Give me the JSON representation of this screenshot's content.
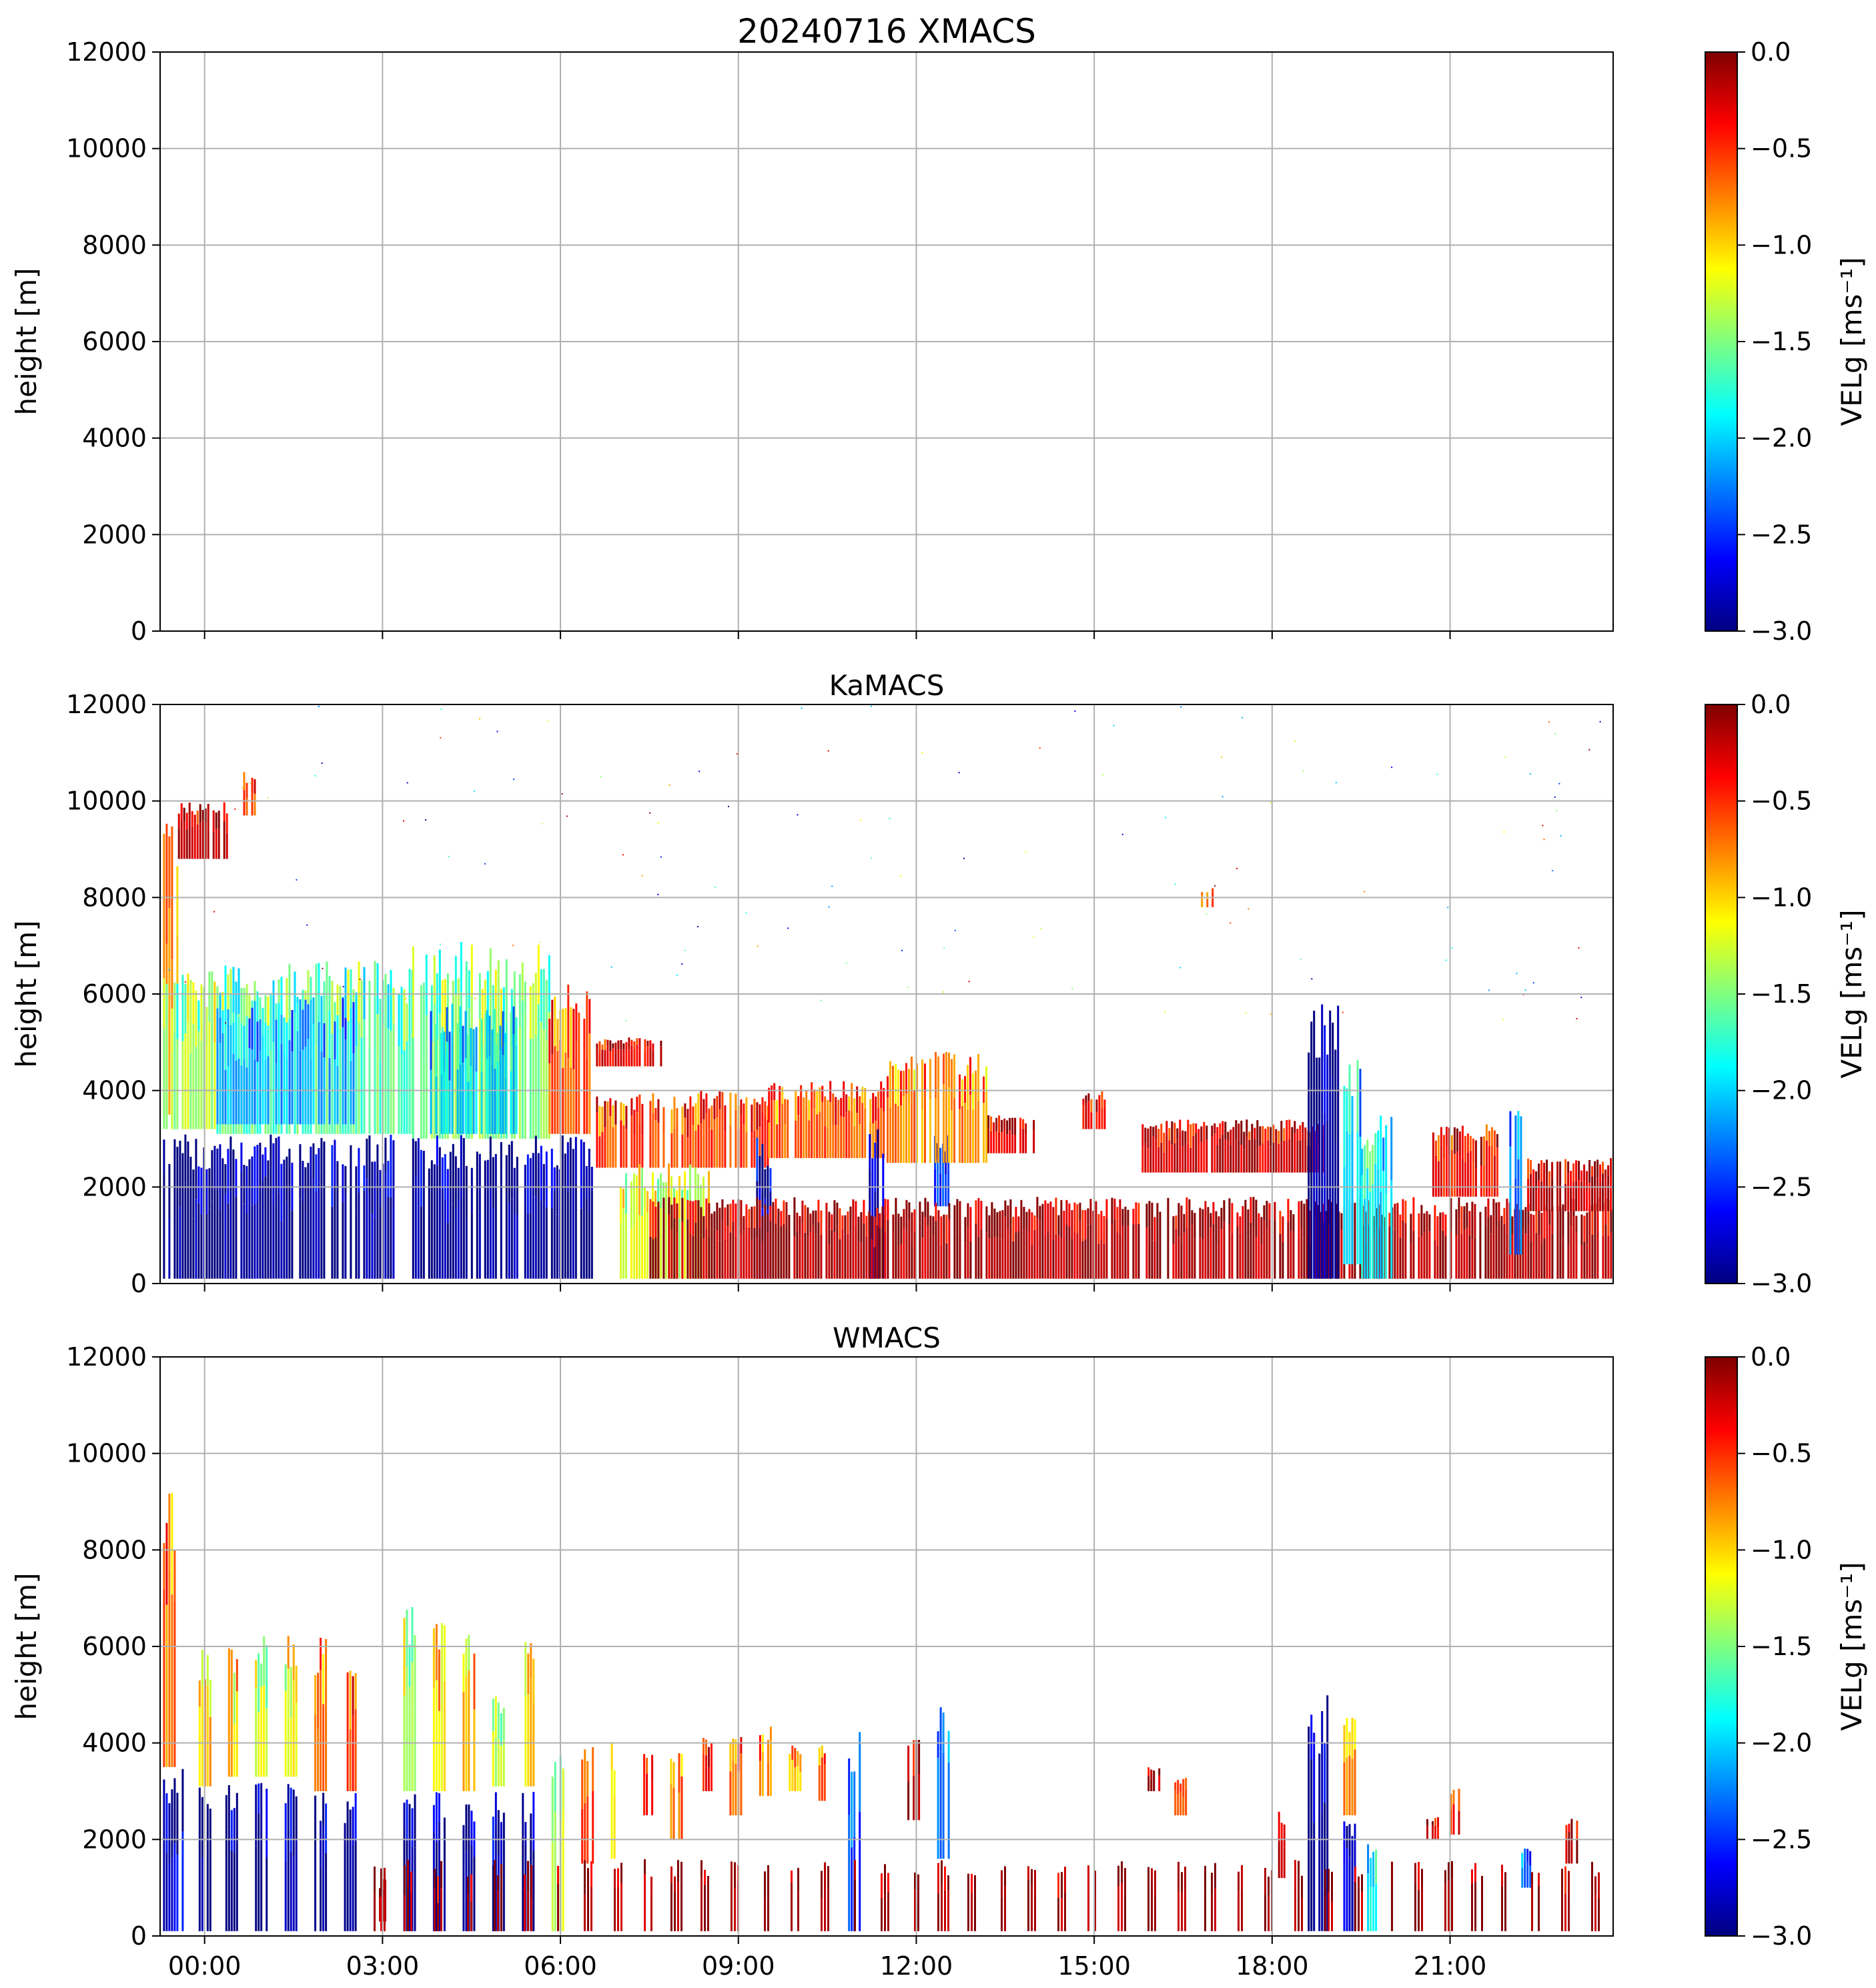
{
  "figure": {
    "colormap": "jet",
    "colors": {
      "grid": "#b0b0b0",
      "axis": "#000000",
      "background": "#ffffff",
      "jet_stops": [
        "#00007f",
        "#0000ff",
        "#007fff",
        "#00ffff",
        "#7fff7f",
        "#ffff00",
        "#ff7f00",
        "#ff0000",
        "#7f0000"
      ]
    }
  },
  "chart_data": [
    {
      "type": "heatmap",
      "id": "xmacs",
      "title": "20240716 XMACS",
      "xlabel": "",
      "ylabel": "height [m]",
      "xlim": [
        -0.75,
        23.75
      ],
      "ylim": [
        0,
        12000
      ],
      "xticks": [
        0,
        3,
        6,
        9,
        12,
        15,
        18,
        21
      ],
      "xticklabels": [
        "",
        "",
        "",
        "",
        "",
        "",
        "",
        ""
      ],
      "yticks": [
        0,
        2000,
        4000,
        6000,
        8000,
        10000,
        12000
      ],
      "yticklabels": [
        "0",
        "2000",
        "4000",
        "6000",
        "8000",
        "10000",
        "12000"
      ],
      "grid": true,
      "colorbar": {
        "label": "VELg [ms⁻¹]",
        "vmin": -3.0,
        "vmax": 0.0,
        "ticks": [
          -3.0,
          -2.5,
          -2.0,
          -1.5,
          -1.0,
          -0.5,
          0.0
        ],
        "ticklabels": [
          "−3.0",
          "−2.5",
          "−2.0",
          "−1.5",
          "−1.0",
          "−0.5",
          "0.0"
        ]
      },
      "regions": []
    },
    {
      "type": "heatmap",
      "id": "kamacs",
      "title": "KaMACS",
      "xlabel": "",
      "ylabel": "height [m]",
      "xlim": [
        -0.75,
        23.75
      ],
      "ylim": [
        0,
        12000
      ],
      "xticks": [
        0,
        3,
        6,
        9,
        12,
        15,
        18,
        21
      ],
      "xticklabels": [
        "",
        "",
        "",
        "",
        "",
        "",
        "",
        ""
      ],
      "yticks": [
        0,
        2000,
        4000,
        6000,
        8000,
        10000,
        12000
      ],
      "yticklabels": [
        "0",
        "2000",
        "4000",
        "6000",
        "8000",
        "10000",
        "12000"
      ],
      "grid": true,
      "colorbar": {
        "label": "VELg [ms⁻¹]",
        "vmin": -3.0,
        "vmax": 0.0,
        "ticks": [
          -3.0,
          -2.5,
          -2.0,
          -1.5,
          -1.0,
          -0.5,
          0.0
        ],
        "ticklabels": [
          "−3.0",
          "−2.5",
          "−2.0",
          "−1.5",
          "−1.0",
          "−0.5",
          "0.0"
        ]
      },
      "regions": [
        {
          "x0": -0.7,
          "x1": -0.45,
          "y0": 3500,
          "y1": 9800,
          "v": -0.9
        },
        {
          "x0": -0.45,
          "x1": 0.4,
          "y0": 8800,
          "y1": 10000,
          "v": -0.2
        },
        {
          "x0": 0.65,
          "x1": 0.85,
          "y0": 9700,
          "y1": 10600,
          "v": -0.6
        },
        {
          "x0": -0.7,
          "x1": 0.2,
          "y0": 3200,
          "y1": 6500,
          "v": -1.4
        },
        {
          "x0": 0.2,
          "x1": 3.5,
          "y0": 3100,
          "y1": 6700,
          "v": -1.6
        },
        {
          "x0": 0.2,
          "x1": 2.5,
          "y0": 3300,
          "y1": 6000,
          "v": -2.1
        },
        {
          "x0": 3.5,
          "x1": 5.8,
          "y0": 3000,
          "y1": 7100,
          "v": -1.5
        },
        {
          "x0": 3.8,
          "x1": 5.3,
          "y0": 3100,
          "y1": 5800,
          "v": -2.0
        },
        {
          "x0": 5.8,
          "x1": 6.6,
          "y0": 3100,
          "y1": 6200,
          "v": -0.6
        },
        {
          "x0": -0.7,
          "x1": 3.2,
          "y0": 100,
          "y1": 3100,
          "v": -2.95
        },
        {
          "x0": 3.5,
          "x1": 6.6,
          "y0": 100,
          "y1": 3100,
          "v": -2.95
        },
        {
          "x0": 6.6,
          "x1": 7.7,
          "y0": 4500,
          "y1": 5100,
          "v": -0.3
        },
        {
          "x0": 6.6,
          "x1": 9.5,
          "y0": 2400,
          "y1": 4000,
          "v": -0.55
        },
        {
          "x0": 9.5,
          "x1": 11.5,
          "y0": 2600,
          "y1": 4200,
          "v": -0.65
        },
        {
          "x0": 7.0,
          "x1": 8.5,
          "y0": 100,
          "y1": 2500,
          "v": -1.25
        },
        {
          "x0": 9.3,
          "x1": 9.55,
          "y0": 100,
          "y1": 3100,
          "v": -2.8
        },
        {
          "x0": 11.2,
          "x1": 11.45,
          "y0": 100,
          "y1": 3200,
          "v": -2.9
        },
        {
          "x0": 12.3,
          "x1": 12.55,
          "y0": 1600,
          "y1": 3100,
          "v": -2.5
        },
        {
          "x0": 11.5,
          "x1": 13.2,
          "y0": 2500,
          "y1": 4800,
          "v": -0.8
        },
        {
          "x0": 13.2,
          "x1": 14.0,
          "y0": 2700,
          "y1": 3500,
          "v": -0.3
        },
        {
          "x0": 7.5,
          "x1": 23.7,
          "y0": 100,
          "y1": 1800,
          "v": -0.12
        },
        {
          "x0": 14.8,
          "x1": 15.2,
          "y0": 3200,
          "y1": 4000,
          "v": -0.3
        },
        {
          "x0": 15.8,
          "x1": 18.9,
          "y0": 2300,
          "y1": 3400,
          "v": -0.25
        },
        {
          "x0": 16.8,
          "x1": 17.0,
          "y0": 7800,
          "y1": 8200,
          "v": -0.7
        },
        {
          "x0": 18.6,
          "x1": 19.1,
          "y0": 100,
          "y1": 5800,
          "v": -2.9
        },
        {
          "x0": 19.2,
          "x1": 19.5,
          "y0": 400,
          "y1": 4700,
          "v": -2.0
        },
        {
          "x0": 19.5,
          "x1": 20.0,
          "y0": 100,
          "y1": 3500,
          "v": -1.9
        },
        {
          "x0": 20.7,
          "x1": 21.8,
          "y0": 1800,
          "y1": 3300,
          "v": -0.4
        },
        {
          "x0": 22.0,
          "x1": 22.2,
          "y0": 600,
          "y1": 3800,
          "v": -2.3
        },
        {
          "x0": 22.3,
          "x1": 23.7,
          "y0": 1500,
          "y1": 2600,
          "v": -0.2
        }
      ]
    },
    {
      "type": "heatmap",
      "id": "wmacs",
      "title": "WMACS",
      "xlabel": "",
      "ylabel": "height [m]",
      "xlim": [
        -0.75,
        23.75
      ],
      "ylim": [
        0,
        12000
      ],
      "xticks": [
        0,
        3,
        6,
        9,
        12,
        15,
        18,
        21
      ],
      "xticklabels": [
        "00:00",
        "03:00",
        "06:00",
        "09:00",
        "12:00",
        "15:00",
        "18:00",
        "21:00"
      ],
      "yticks": [
        0,
        2000,
        4000,
        6000,
        8000,
        10000,
        12000
      ],
      "yticklabels": [
        "0",
        "2000",
        "4000",
        "6000",
        "8000",
        "10000",
        "12000"
      ],
      "grid": true,
      "colorbar": {
        "label": "VELg [ms⁻¹]",
        "vmin": -3.0,
        "vmax": 0.0,
        "ticks": [
          -3.0,
          -2.5,
          -2.0,
          -1.5,
          -1.0,
          -0.5,
          0.0
        ],
        "ticklabels": [
          "−3.0",
          "−2.5",
          "−2.0",
          "−1.5",
          "−1.0",
          "−0.5",
          "0.0"
        ]
      },
      "regions": [
        {
          "x0": -0.7,
          "x1": -0.5,
          "y0": 3500,
          "y1": 9200,
          "v": -0.7
        },
        {
          "x0": -0.7,
          "x1": -0.35,
          "y0": 100,
          "y1": 3500,
          "v": -2.7
        },
        {
          "x0": -0.1,
          "x1": 0.1,
          "y0": 3100,
          "y1": 6000,
          "v": -0.9
        },
        {
          "x0": -0.1,
          "x1": 0.1,
          "y0": 100,
          "y1": 3100,
          "v": -2.95
        },
        {
          "x0": 0.35,
          "x1": 0.55,
          "y0": 3300,
          "y1": 6100,
          "v": -1.0
        },
        {
          "x0": 0.35,
          "x1": 0.55,
          "y0": 100,
          "y1": 3300,
          "v": -2.95
        },
        {
          "x0": 0.85,
          "x1": 1.05,
          "y0": 3300,
          "y1": 6300,
          "v": -1.2
        },
        {
          "x0": 0.85,
          "x1": 1.05,
          "y0": 100,
          "y1": 3300,
          "v": -2.95
        },
        {
          "x0": 1.35,
          "x1": 1.55,
          "y0": 3300,
          "y1": 6300,
          "v": -1.1
        },
        {
          "x0": 1.35,
          "x1": 1.55,
          "y0": 100,
          "y1": 3200,
          "v": -2.95
        },
        {
          "x0": 1.85,
          "x1": 2.05,
          "y0": 3000,
          "y1": 6200,
          "v": -0.8
        },
        {
          "x0": 1.85,
          "x1": 2.05,
          "y0": 100,
          "y1": 3000,
          "v": -2.95
        },
        {
          "x0": 2.35,
          "x1": 2.55,
          "y0": 3000,
          "y1": 5800,
          "v": -0.6
        },
        {
          "x0": 2.35,
          "x1": 2.55,
          "y0": 100,
          "y1": 3000,
          "v": -2.95
        },
        {
          "x0": 2.85,
          "x1": 3.05,
          "y0": 300,
          "y1": 1200,
          "v": -0.15
        },
        {
          "x0": 3.35,
          "x1": 3.55,
          "y0": 3000,
          "y1": 6900,
          "v": -1.3
        },
        {
          "x0": 3.35,
          "x1": 3.55,
          "y0": 100,
          "y1": 3000,
          "v": -2.95
        },
        {
          "x0": 3.85,
          "x1": 4.05,
          "y0": 3000,
          "y1": 6700,
          "v": -1.1
        },
        {
          "x0": 3.85,
          "x1": 4.05,
          "y0": 100,
          "y1": 3000,
          "v": -2.95
        },
        {
          "x0": 4.35,
          "x1": 4.55,
          "y0": 3000,
          "y1": 6400,
          "v": -1.0
        },
        {
          "x0": 4.35,
          "x1": 4.55,
          "y0": 100,
          "y1": 3000,
          "v": -2.95
        },
        {
          "x0": 4.85,
          "x1": 5.05,
          "y0": 3100,
          "y1": 5000,
          "v": -1.3
        },
        {
          "x0": 4.85,
          "x1": 5.05,
          "y0": 100,
          "y1": 3100,
          "v": -2.95
        },
        {
          "x0": 5.35,
          "x1": 5.55,
          "y0": 3100,
          "y1": 6300,
          "v": -1.0
        },
        {
          "x0": 5.35,
          "x1": 5.55,
          "y0": 100,
          "y1": 3100,
          "v": -2.95
        },
        {
          "x0": 5.85,
          "x1": 6.05,
          "y0": 100,
          "y1": 3800,
          "v": -1.3
        },
        {
          "x0": 6.35,
          "x1": 6.55,
          "y0": 1500,
          "y1": 4100,
          "v": -0.5
        },
        {
          "x0": 6.85,
          "x1": 7.05,
          "y0": 1600,
          "y1": 4000,
          "v": -1.1
        },
        {
          "x0": 7.35,
          "x1": 7.55,
          "y0": 2500,
          "y1": 3800,
          "v": -0.3
        },
        {
          "x0": 7.85,
          "x1": 8.05,
          "y0": 2000,
          "y1": 3900,
          "v": -0.7
        },
        {
          "x0": 8.35,
          "x1": 8.55,
          "y0": 3000,
          "y1": 4200,
          "v": -0.4
        },
        {
          "x0": 8.85,
          "x1": 9.05,
          "y0": 2500,
          "y1": 4300,
          "v": -0.6
        },
        {
          "x0": 9.35,
          "x1": 9.55,
          "y0": 2900,
          "y1": 4400,
          "v": -0.8
        },
        {
          "x0": 9.85,
          "x1": 10.05,
          "y0": 3000,
          "y1": 4000,
          "v": -0.9
        },
        {
          "x0": 10.35,
          "x1": 10.55,
          "y0": 2800,
          "y1": 4100,
          "v": -0.7
        },
        {
          "x0": 10.85,
          "x1": 11.05,
          "y0": 100,
          "y1": 4300,
          "v": -2.4
        },
        {
          "x0": 11.85,
          "x1": 12.05,
          "y0": 2400,
          "y1": 4300,
          "v": -0.1
        },
        {
          "x0": 12.35,
          "x1": 12.55,
          "y0": 1600,
          "y1": 4800,
          "v": -2.2
        },
        {
          "x0": 15.9,
          "x1": 16.1,
          "y0": 3000,
          "y1": 3500,
          "v": -0.2
        },
        {
          "x0": 16.35,
          "x1": 16.55,
          "y0": 2500,
          "y1": 3300,
          "v": -0.5
        },
        {
          "x0": 18.1,
          "x1": 18.3,
          "y0": 1200,
          "y1": 2600,
          "v": -0.15
        },
        {
          "x0": 18.6,
          "x1": 18.95,
          "y0": 100,
          "y1": 5000,
          "v": -2.95
        },
        {
          "x0": 19.2,
          "x1": 19.4,
          "y0": 2500,
          "y1": 4600,
          "v": -0.8
        },
        {
          "x0": 19.2,
          "x1": 19.4,
          "y0": 100,
          "y1": 2500,
          "v": -2.7
        },
        {
          "x0": 19.6,
          "x1": 19.8,
          "y0": 100,
          "y1": 2100,
          "v": -1.9
        },
        {
          "x0": 20.6,
          "x1": 20.8,
          "y0": 2000,
          "y1": 2500,
          "v": -0.3
        },
        {
          "x0": 21.0,
          "x1": 21.15,
          "y0": 2100,
          "y1": 3200,
          "v": -0.4
        },
        {
          "x0": 22.2,
          "x1": 22.35,
          "y0": 1000,
          "y1": 1900,
          "v": -2.3
        },
        {
          "x0": 22.9,
          "x1": 23.2,
          "y0": 1500,
          "y1": 2500,
          "v": -0.15
        },
        {
          "x0": 2.85,
          "x1": 23.6,
          "y0": 100,
          "y1": 1600,
          "v": -0.1,
          "pattern": "bursts"
        }
      ]
    }
  ]
}
